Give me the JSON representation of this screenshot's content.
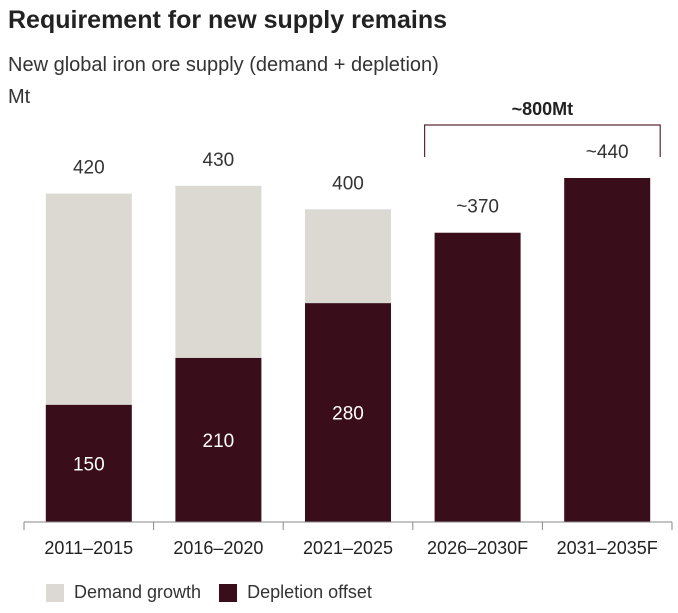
{
  "title": "Requirement for new supply remains",
  "subtitle": "New global iron ore supply (demand + depletion)",
  "unit": "Mt",
  "colors": {
    "demand": "#dcd9d2",
    "depletion": "#3a0d1b",
    "bracket": "#5a2a36",
    "axis": "#888888"
  },
  "legend": {
    "demand_label": "Demand growth",
    "depletion_label": "Depletion offset"
  },
  "chart_data": {
    "type": "bar",
    "stacked": true,
    "categories": [
      "2011–2015",
      "2016–2020",
      "2021–2025",
      "2026–2030F",
      "2031–2035F"
    ],
    "series": [
      {
        "name": "Depletion offset",
        "values": [
          150,
          210,
          280,
          370,
          440
        ]
      },
      {
        "name": "Demand growth",
        "values": [
          270,
          220,
          120,
          0,
          0
        ]
      }
    ],
    "total_labels": [
      "420",
      "430",
      "400",
      "~370",
      "~440"
    ],
    "depletion_labels": [
      "150",
      "210",
      "280",
      "",
      ""
    ],
    "annotation": {
      "text": "~800Mt",
      "spans": [
        "2026–2030F",
        "2031–2035F"
      ]
    },
    "ylim": [
      0,
      440
    ]
  }
}
